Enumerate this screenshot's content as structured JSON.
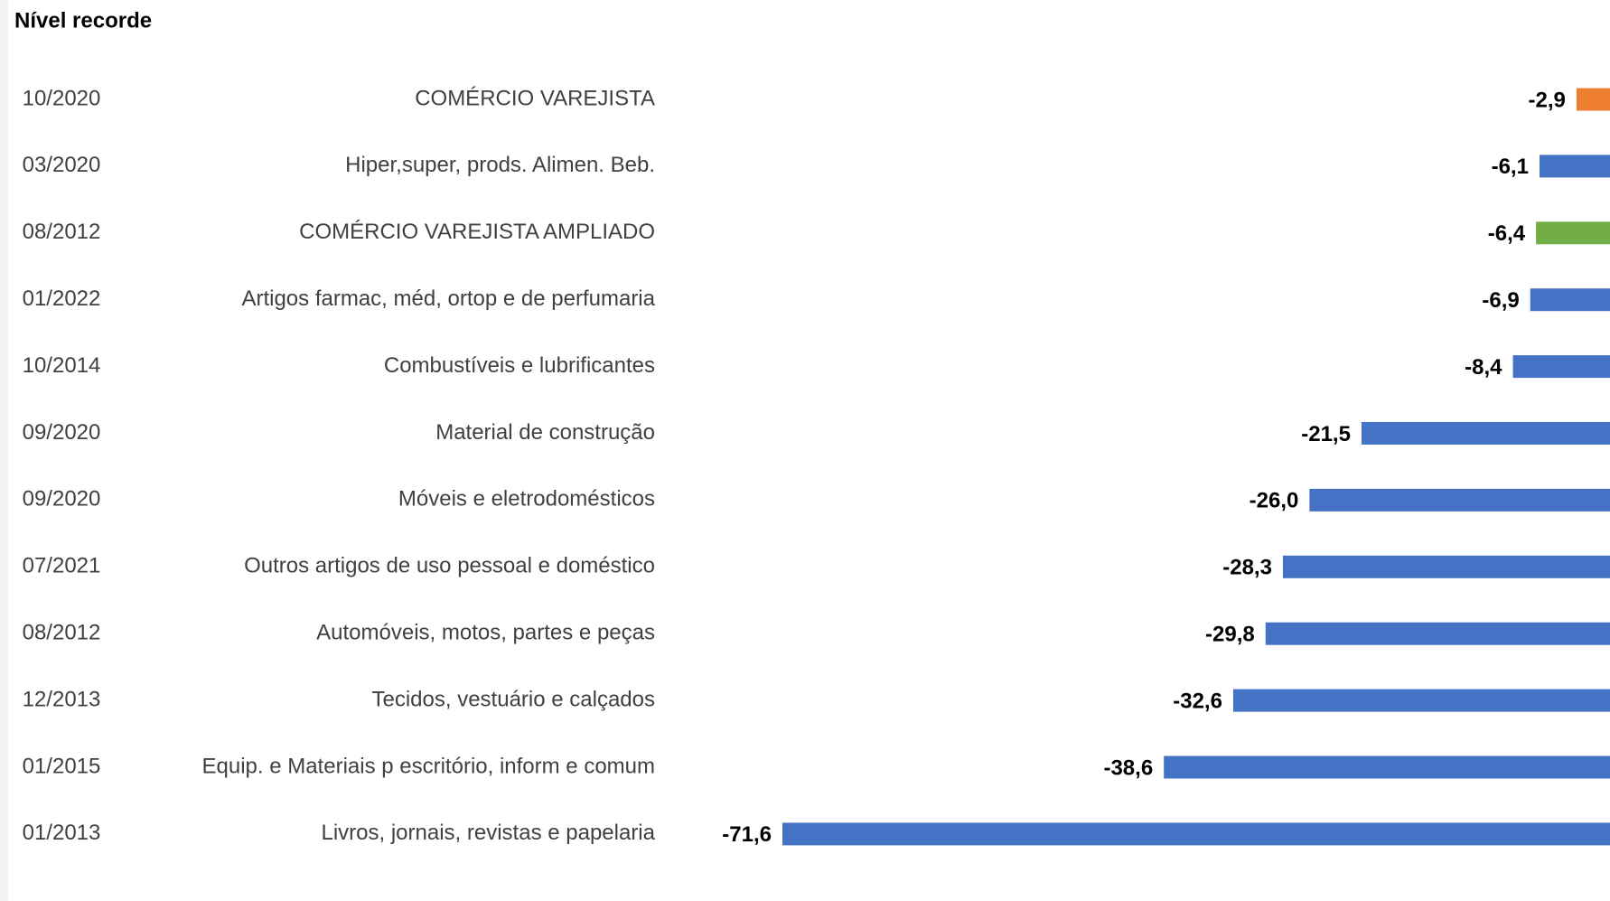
{
  "chart_data": {
    "type": "bar",
    "orientation": "horizontal",
    "title": "Nível recorde",
    "dates": [
      "10/2020",
      "03/2020",
      "08/2012",
      "01/2022",
      "10/2014",
      "09/2020",
      "09/2020",
      "07/2021",
      "08/2012",
      "12/2013",
      "01/2015",
      "01/2013"
    ],
    "categories": [
      "COMÉRCIO VAREJISTA",
      "Hiper,super,  prods. Alimen. Beb.",
      "COMÉRCIO VAREJISTA AMPLIADO",
      "Artigos farmac, méd, ortop e de perfumaria",
      "Combustíveis e lubrificantes",
      "Material de construção",
      "Móveis e eletrodomésticos",
      "Outros artigos de uso pessoal e doméstico",
      "Automóveis, motos, partes e peças",
      "Tecidos, vestuário e calçados",
      "Equip. e Materiais p escritório, inform e comum",
      "Livros, jornais, revistas e papelaria"
    ],
    "values": [
      -2.9,
      -6.1,
      -6.4,
      -6.9,
      -8.4,
      -21.5,
      -26.0,
      -28.3,
      -29.8,
      -32.6,
      -38.6,
      -71.6
    ],
    "value_labels": [
      "-2,9",
      "-6,1",
      "-6,4",
      "-6,9",
      "-8,4",
      "-21,5",
      "-26,0",
      "-28,3",
      "-29,8",
      "-32,6",
      "-38,6",
      "-71,6"
    ],
    "colors": [
      "#ed7d31",
      "#4472c4",
      "#70ad47",
      "#4472c4",
      "#4472c4",
      "#4472c4",
      "#4472c4",
      "#4472c4",
      "#4472c4",
      "#4472c4",
      "#4472c4",
      "#4472c4"
    ]
  }
}
